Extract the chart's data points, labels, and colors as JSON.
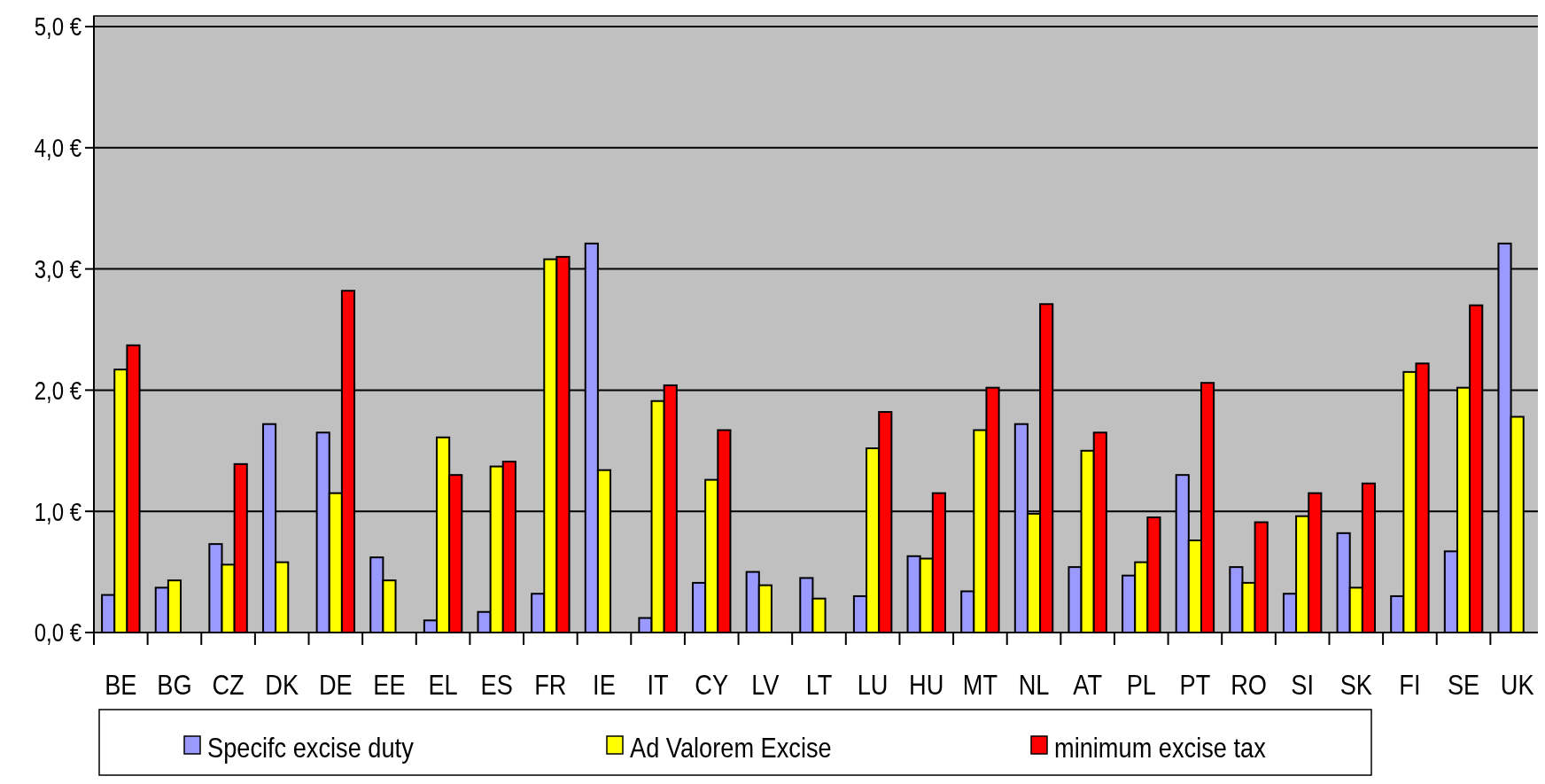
{
  "chart_data": {
    "type": "bar",
    "categories": [
      "BE",
      "BG",
      "CZ",
      "DK",
      "DE",
      "EE",
      "EL",
      "ES",
      "FR",
      "IE",
      "IT",
      "CY",
      "LV",
      "LT",
      "LU",
      "HU",
      "MT",
      "NL",
      "AT",
      "PL",
      "PT",
      "RO",
      "SI",
      "SK",
      "FI",
      "SE",
      "UK"
    ],
    "series": [
      {
        "name": "Specifc excise duty",
        "color": "#9999ff",
        "values": [
          0.31,
          0.37,
          0.73,
          1.72,
          1.65,
          0.62,
          0.1,
          0.17,
          0.32,
          3.21,
          0.12,
          0.41,
          0.5,
          0.45,
          0.3,
          0.63,
          0.34,
          1.72,
          0.54,
          0.47,
          1.3,
          0.54,
          0.32,
          0.82,
          0.3,
          0.67,
          3.21
        ]
      },
      {
        "name": "Ad Valorem Excise",
        "color": "#ffff00",
        "values": [
          2.17,
          0.43,
          0.56,
          0.58,
          1.15,
          0.43,
          1.61,
          1.37,
          3.08,
          1.34,
          1.91,
          1.26,
          0.39,
          0.28,
          1.52,
          0.61,
          1.67,
          0.98,
          1.5,
          0.58,
          0.76,
          0.41,
          0.96,
          0.37,
          2.15,
          2.02,
          1.78
        ]
      },
      {
        "name": "minimum excise tax",
        "color": "#ff0000",
        "values": [
          2.37,
          null,
          1.39,
          null,
          2.82,
          null,
          1.3,
          1.41,
          3.1,
          null,
          2.04,
          1.67,
          null,
          null,
          1.82,
          1.15,
          2.02,
          2.71,
          1.65,
          0.95,
          2.06,
          0.91,
          1.15,
          1.23,
          2.22,
          2.7,
          null
        ]
      }
    ],
    "ylim": [
      0,
      5
    ],
    "yticks": [
      {
        "value": 0,
        "label": "0,0 €"
      },
      {
        "value": 1,
        "label": "1,0 €"
      },
      {
        "value": 2,
        "label": "2,0 €"
      },
      {
        "value": 3,
        "label": "3,0 €"
      },
      {
        "value": 4,
        "label": "4,0 €"
      },
      {
        "value": 5,
        "label": "5,0 €"
      }
    ],
    "grid": "y",
    "legend": "bottom"
  }
}
